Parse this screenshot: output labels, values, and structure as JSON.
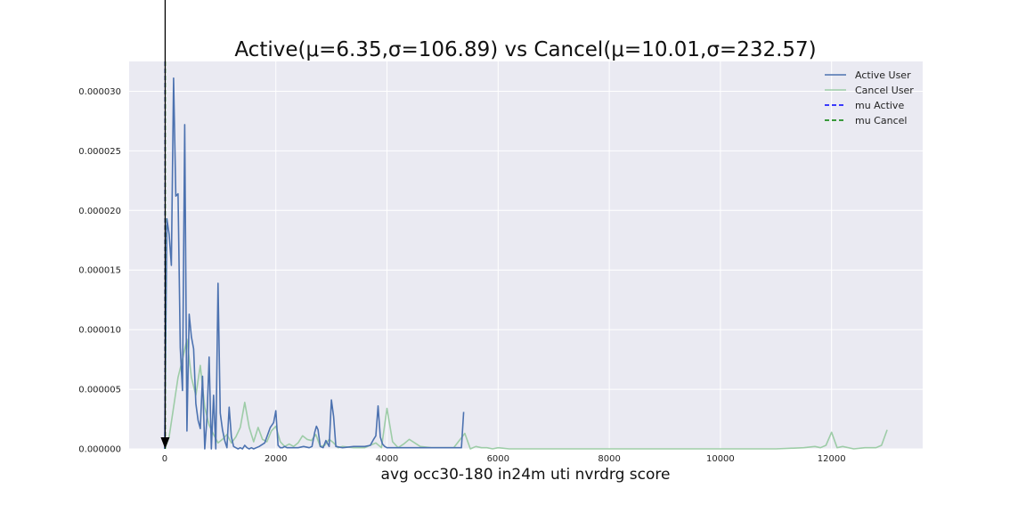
{
  "chart_data": {
    "type": "line",
    "title": "Active(μ=6.35,σ=106.89) vs Cancel(μ=10.01,σ=232.57)",
    "xlabel": "avg occ30-180 in24m uti nvrdrg score",
    "ylabel": "",
    "xlim": [
      -640,
      13640
    ],
    "ylim": [
      0,
      3.25e-05
    ],
    "xticks": [
      0,
      2000,
      4000,
      6000,
      8000,
      10000,
      12000
    ],
    "yticks": [
      0,
      5e-06,
      1e-05,
      1.5e-05,
      2e-05,
      2.5e-05,
      3e-05
    ],
    "xtick_labels": [
      "0",
      "2000",
      "4000",
      "6000",
      "8000",
      "10000",
      "12000"
    ],
    "ytick_labels": [
      "0.000000",
      "0.000005",
      "0.000010",
      "0.000015",
      "0.000020",
      "0.000025",
      "0.000030"
    ],
    "grid": true,
    "legend_position": "top-right",
    "colors": {
      "background": "#eaeaf2",
      "grid": "#ffffff",
      "active": "#4c72b0",
      "cancel": "#8fc79a",
      "mu_active": "#0000ff",
      "mu_cancel": "#008000",
      "arrow": "#000000"
    },
    "series": [
      {
        "name": "Active User",
        "style": "solid",
        "x": [
          0,
          40,
          80,
          120,
          160,
          200,
          240,
          280,
          320,
          360,
          400,
          440,
          480,
          520,
          560,
          600,
          640,
          680,
          720,
          760,
          800,
          840,
          880,
          920,
          960,
          1000,
          1040,
          1080,
          1120,
          1160,
          1200,
          1240,
          1280,
          1320,
          1360,
          1400,
          1440,
          1480,
          1520,
          1560,
          1600,
          1700,
          1800,
          1900,
          1960,
          2000,
          2040,
          2080,
          2120,
          2160,
          2200,
          2300,
          2400,
          2500,
          2600,
          2650,
          2700,
          2730,
          2760,
          2800,
          2850,
          2900,
          2960,
          3000,
          3040,
          3080,
          3200,
          3400,
          3600,
          3700,
          3760,
          3800,
          3840,
          3880,
          3920,
          3960,
          4000,
          4200,
          4400,
          4600,
          4800,
          5000,
          5200,
          5300,
          5340,
          5380
        ],
        "y": [
          0,
          1.93e-05,
          1.8e-05,
          1.54e-05,
          3.11e-05,
          2.12e-05,
          2.14e-05,
          8.5e-06,
          4.9e-06,
          2.72e-05,
          1.5e-06,
          1.13e-05,
          9.4e-06,
          8.4e-06,
          3.8e-06,
          2.4e-06,
          1.7e-06,
          6.1e-06,
          0,
          2.6e-06,
          7.7e-06,
          0,
          4.5e-06,
          0,
          1.39e-05,
          3e-06,
          1.6e-06,
          7e-07,
          1e-07,
          3.5e-06,
          1e-06,
          2e-07,
          1e-07,
          0,
          1e-07,
          0,
          3e-07,
          1e-07,
          0,
          1e-07,
          0,
          2e-07,
          5e-07,
          1.8e-06,
          2.2e-06,
          3.2e-06,
          3e-07,
          1e-07,
          1e-07,
          2e-07,
          1e-07,
          1e-07,
          1e-07,
          2e-07,
          1e-07,
          2e-07,
          1.4e-06,
          1.9e-06,
          1.6e-06,
          2e-07,
          1e-07,
          7e-07,
          2e-07,
          4.1e-06,
          2.7e-06,
          2e-07,
          1e-07,
          2e-07,
          2e-07,
          3e-07,
          8e-07,
          1.1e-06,
          3.6e-06,
          1e-06,
          4e-07,
          2e-07,
          1e-07,
          1e-07,
          1e-07,
          1e-07,
          1e-07,
          1e-07,
          1e-07,
          1e-07,
          1e-07,
          3.1e-06
        ]
      },
      {
        "name": "Cancel User",
        "style": "solid",
        "x": [
          0,
          80,
          160,
          240,
          320,
          400,
          480,
          560,
          640,
          720,
          800,
          880,
          960,
          1040,
          1120,
          1200,
          1280,
          1360,
          1440,
          1520,
          1600,
          1680,
          1760,
          1840,
          1920,
          2000,
          2080,
          2160,
          2240,
          2320,
          2400,
          2480,
          2560,
          2640,
          2720,
          2800,
          2880,
          2960,
          3040,
          3120,
          3200,
          3400,
          3600,
          3800,
          3900,
          4000,
          4100,
          4200,
          4300,
          4400,
          4500,
          4600,
          4800,
          5000,
          5200,
          5400,
          5500,
          5600,
          5700,
          5800,
          5900,
          6000,
          6200,
          6500,
          7000,
          7500,
          8000,
          8500,
          9000,
          9500,
          10000,
          10500,
          11000,
          11500,
          11700,
          11800,
          11900,
          12000,
          12100,
          12200,
          12400,
          12600,
          12800,
          12900,
          13000
        ],
        "y": [
          0,
          1e-06,
          3.5e-06,
          6e-06,
          7.5e-06,
          9.2e-06,
          6e-06,
          4.5e-06,
          7e-06,
          3.5e-06,
          2e-06,
          1.2e-06,
          5e-07,
          8e-07,
          1.2e-06,
          5e-07,
          1e-06,
          1.8e-06,
          3.9e-06,
          1.8e-06,
          6e-07,
          1.8e-06,
          8e-07,
          6e-07,
          1.5e-06,
          1.9e-06,
          6e-07,
          2e-07,
          4e-07,
          2e-07,
          5e-07,
          1.1e-06,
          8e-07,
          7e-07,
          1.2e-06,
          2e-07,
          3e-07,
          8e-07,
          5e-07,
          1e-07,
          2e-07,
          1e-07,
          1e-07,
          5e-07,
          1e-07,
          3.4e-06,
          6e-07,
          1e-07,
          4e-07,
          8e-07,
          5e-07,
          2e-07,
          1e-07,
          1e-07,
          1e-07,
          1.3e-06,
          0,
          2e-07,
          1e-07,
          1e-07,
          0,
          1e-07,
          0,
          0,
          0,
          0,
          0,
          0,
          0,
          0,
          0,
          0,
          0,
          1e-07,
          2e-07,
          1e-07,
          3e-07,
          1.4e-06,
          1e-07,
          2e-07,
          0,
          1e-07,
          1e-07,
          3e-07,
          1.6e-06
        ]
      },
      {
        "name": "mu Active",
        "style": "dashed",
        "vline_x": 6.35
      },
      {
        "name": "mu Cancel",
        "style": "dashed",
        "vline_x": 10.01
      }
    ],
    "annotation": {
      "type": "arrow",
      "x": 8,
      "y_target": 0
    }
  }
}
